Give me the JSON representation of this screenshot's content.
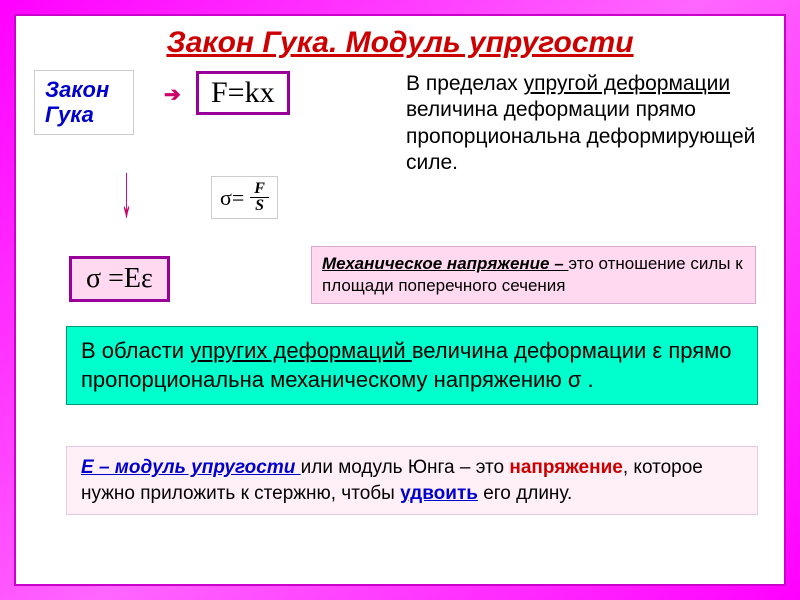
{
  "title": "Закон Гука.    Модуль упругости",
  "hooke_label_line1": "Закон",
  "hooke_label_line2": "Гука",
  "formula_fkx": "F=kx",
  "desc_right_pre": "В пределах ",
  "desc_right_underline": "упругой деформации ",
  "desc_right_post": "величина деформации прямо пропорциональна деформирующей силе.",
  "sigma_label": "σ=",
  "frac_num": "F",
  "frac_den": "S",
  "formula_sigma_ee": "σ =Eε",
  "mech_stress_bold": "Механическое напряжение – ",
  "mech_stress_rest": "это отношение силы к площади поперечного сечения",
  "green_pre": "В области ",
  "green_underline": "упругих деформаций ",
  "green_post": "величина деформации ε прямо пропорциональна механическому напряжению σ .",
  "youngs_e": "Е – модуль упругости ",
  "youngs_mid1": "или модуль Юнга – это ",
  "youngs_stress": "напряжение",
  "youngs_mid2": ", которое нужно приложить к стержню, чтобы ",
  "youngs_double": "удвоить",
  "youngs_end": " его длину.",
  "colors": {
    "title": "#cc0000",
    "accent_blue": "#0000cc",
    "formula_border": "#990099",
    "pink_bg": "#ffd9f0",
    "green_bg": "#00ffcc",
    "arrow": "#cc0066"
  },
  "fonts": {
    "title_size": 30,
    "body_size": 21,
    "formula_size": 28
  }
}
